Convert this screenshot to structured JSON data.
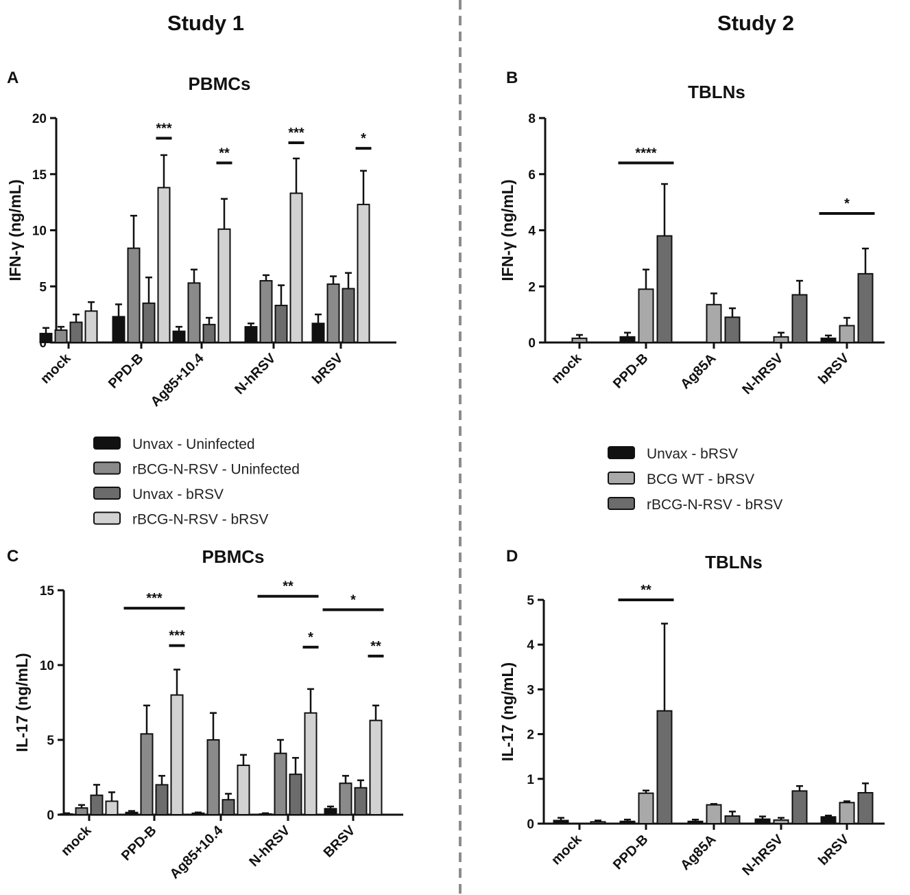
{
  "study_titles": {
    "left": "Study 1",
    "right": "Study 2"
  },
  "legend_study1": [
    {
      "label": "Unvax - Uninfected",
      "color": "#111111"
    },
    {
      "label": "rBCG-N-RSV - Uninfected",
      "color": "#8a8a8a"
    },
    {
      "label": "Unvax - bRSV",
      "color": "#6c6c6c"
    },
    {
      "label": "rBCG-N-RSV - bRSV",
      "color": "#d2d2d2"
    }
  ],
  "legend_study2": [
    {
      "label": "Unvax - bRSV",
      "color": "#111111"
    },
    {
      "label": "BCG WT - bRSV",
      "color": "#a9a9a9"
    },
    {
      "label": "rBCG-N-RSV - bRSV",
      "color": "#6c6c6c"
    }
  ],
  "chart_data": [
    {
      "panel": "A",
      "type": "bar",
      "title": "PBMCs",
      "ylabel": "IFN-γ (ng/mL)",
      "ylim": [
        0,
        20
      ],
      "yticks": [
        0,
        5,
        10,
        15,
        20
      ],
      "categories": [
        "mock",
        "PPD-B",
        "Ag85+10.4",
        "N-hRSV",
        "bRSV"
      ],
      "series": [
        {
          "name": "Unvax - Uninfected",
          "color": "#111111",
          "values": [
            0.8,
            2.3,
            1.0,
            1.4,
            1.7
          ],
          "errors": [
            0.5,
            1.1,
            0.4,
            0.3,
            0.8
          ]
        },
        {
          "name": "rBCG-N-RSV - Uninfected",
          "color": "#8a8a8a",
          "values": [
            1.1,
            8.4,
            5.3,
            5.5,
            5.2
          ],
          "errors": [
            0.3,
            2.9,
            1.2,
            0.5,
            0.7
          ]
        },
        {
          "name": "Unvax - bRSV",
          "color": "#6c6c6c",
          "values": [
            1.8,
            3.5,
            1.6,
            3.3,
            4.8
          ],
          "errors": [
            0.7,
            2.3,
            0.6,
            1.8,
            1.4
          ]
        },
        {
          "name": "rBCG-N-RSV - bRSV",
          "color": "#d2d2d2",
          "values": [
            2.8,
            13.8,
            10.1,
            13.3,
            12.3
          ],
          "errors": [
            0.8,
            2.9,
            2.7,
            3.1,
            3.0
          ]
        }
      ],
      "significance": [
        {
          "label": "***",
          "cat": 1,
          "from": 3,
          "to": 3,
          "y": 18.2
        },
        {
          "label": "**",
          "cat": 2,
          "from": 3,
          "to": 3,
          "y": 16.0
        },
        {
          "label": "***",
          "cat": 3,
          "from": 3,
          "to": 3,
          "y": 17.8
        },
        {
          "label": "*",
          "cat": 4,
          "from": 3,
          "to": 3,
          "y": 17.3
        }
      ]
    },
    {
      "panel": "B",
      "type": "bar",
      "title": "TBLNs",
      "ylabel": "IFN-γ (ng/mL)",
      "ylim": [
        0,
        8
      ],
      "yticks": [
        0,
        2,
        4,
        6,
        8
      ],
      "categories": [
        "mock",
        "PPD-B",
        "Ag85A",
        "N-hRSV",
        "bRSV"
      ],
      "series": [
        {
          "name": "Unvax - bRSV",
          "color": "#111111",
          "values": [
            0,
            0.2,
            0,
            0,
            0.15
          ],
          "errors": [
            0,
            0.15,
            0,
            0,
            0.1
          ]
        },
        {
          "name": "BCG WT - bRSV",
          "color": "#a9a9a9",
          "values": [
            0.15,
            1.9,
            1.35,
            0.2,
            0.6
          ],
          "errors": [
            0.12,
            0.7,
            0.4,
            0.15,
            0.28
          ]
        },
        {
          "name": "rBCG-N-RSV - bRSV",
          "color": "#6c6c6c",
          "values": [
            0,
            3.8,
            0.9,
            1.7,
            2.45
          ],
          "errors": [
            0,
            1.85,
            0.32,
            0.5,
            0.9
          ]
        }
      ],
      "significance": [
        {
          "label": "****",
          "cat": 1,
          "from": 0,
          "to": 2,
          "y": 6.4
        },
        {
          "label": "*",
          "cat": 4,
          "from": 0,
          "to": 2,
          "y": 4.6
        }
      ]
    },
    {
      "panel": "C",
      "type": "bar",
      "title": "PBMCs",
      "ylabel": "IL-17 (ng/mL)",
      "ylim": [
        0,
        15
      ],
      "yticks": [
        0,
        5,
        10,
        15
      ],
      "categories": [
        "mock",
        "PPD-B",
        "Ag85+10.4",
        "N-hRSV",
        "BRSV"
      ],
      "series": [
        {
          "name": "Unvax - Uninfected",
          "color": "#111111",
          "values": [
            0.05,
            0.15,
            0.1,
            0.05,
            0.4
          ],
          "errors": [
            0.05,
            0.1,
            0.05,
            0.05,
            0.15
          ]
        },
        {
          "name": "rBCG-N-RSV - Uninfected",
          "color": "#8a8a8a",
          "values": [
            0.45,
            5.4,
            5.0,
            4.1,
            2.1
          ],
          "errors": [
            0.2,
            1.9,
            1.8,
            0.9,
            0.5
          ]
        },
        {
          "name": "Unvax - bRSV",
          "color": "#6c6c6c",
          "values": [
            1.3,
            2.0,
            1.0,
            2.7,
            1.8
          ],
          "errors": [
            0.7,
            0.6,
            0.4,
            1.1,
            0.5
          ]
        },
        {
          "name": "rBCG-N-RSV - bRSV",
          "color": "#d2d2d2",
          "values": [
            0.9,
            8.0,
            3.3,
            6.8,
            6.3
          ],
          "errors": [
            0.6,
            1.7,
            0.7,
            1.6,
            1.0
          ]
        }
      ],
      "significance": [
        {
          "label": "***",
          "cat": 1,
          "from": 0,
          "to": 3,
          "y": 13.8
        },
        {
          "label": "***",
          "cat": 1,
          "from": 3,
          "to": 3,
          "y": 11.3
        },
        {
          "label": "**",
          "cat": 3,
          "from": 0,
          "to": 3,
          "y": 14.6
        },
        {
          "label": "*",
          "cat": 3,
          "from": 3,
          "to": 3,
          "y": 11.2
        },
        {
          "label": "*",
          "cat": 4,
          "from": 0,
          "to": 3,
          "y": 13.7
        },
        {
          "label": "**",
          "cat": 4,
          "from": 3,
          "to": 3,
          "y": 10.6
        }
      ]
    },
    {
      "panel": "D",
      "type": "bar",
      "title": "TBLNs",
      "ylabel": "IL-17 (ng/mL)",
      "ylim": [
        0,
        5
      ],
      "yticks": [
        0,
        1,
        2,
        3,
        4,
        5
      ],
      "categories": [
        "mock",
        "PPD-B",
        "Ag85A",
        "N-hRSV",
        "bRSV"
      ],
      "series": [
        {
          "name": "Unvax - bRSV",
          "color": "#111111",
          "values": [
            0.07,
            0.05,
            0.05,
            0.1,
            0.15
          ],
          "errors": [
            0.06,
            0.04,
            0.04,
            0.06,
            0.03
          ]
        },
        {
          "name": "BCG WT - bRSV",
          "color": "#a9a9a9",
          "values": [
            0,
            0.68,
            0.42,
            0.08,
            0.47
          ],
          "errors": [
            0,
            0.06,
            0.02,
            0.05,
            0.03
          ]
        },
        {
          "name": "rBCG-N-RSV - bRSV",
          "color": "#6c6c6c",
          "values": [
            0.04,
            2.52,
            0.17,
            0.73,
            0.69
          ],
          "errors": [
            0.03,
            1.95,
            0.1,
            0.11,
            0.21
          ]
        }
      ],
      "significance": [
        {
          "label": "**",
          "cat": 1,
          "from": 0,
          "to": 2,
          "y": 5.0
        }
      ]
    }
  ]
}
